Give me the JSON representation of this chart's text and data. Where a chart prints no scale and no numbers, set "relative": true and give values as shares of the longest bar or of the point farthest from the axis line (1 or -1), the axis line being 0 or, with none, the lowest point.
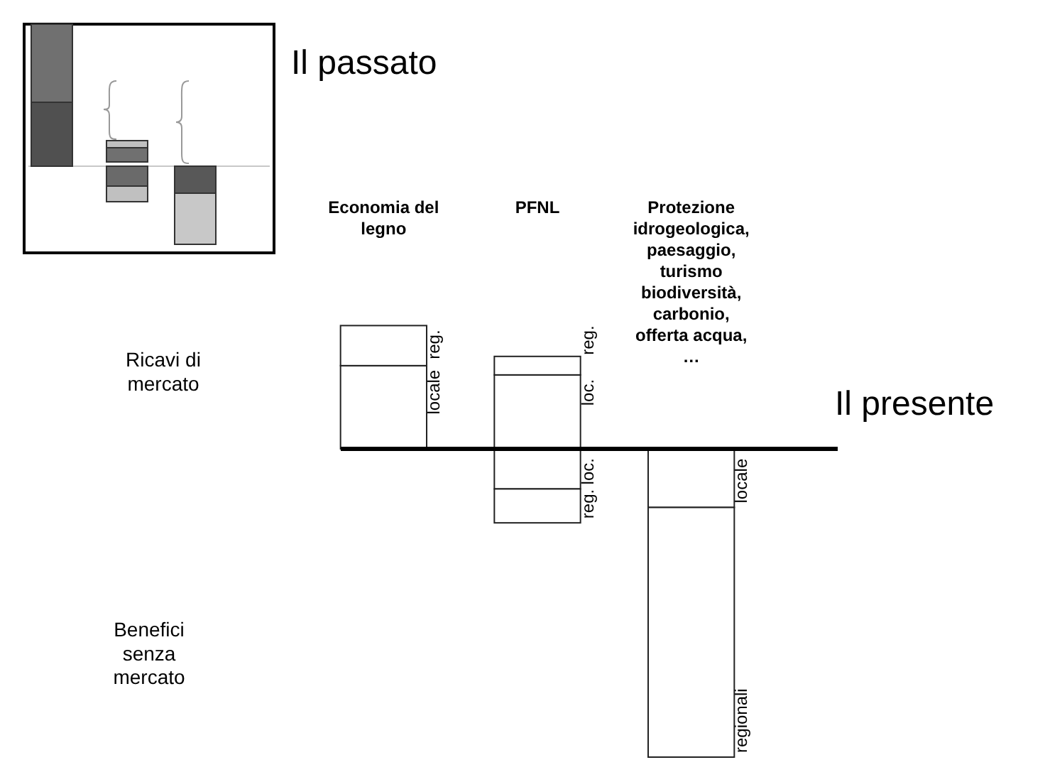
{
  "chart_data": {
    "type": "bar",
    "title": "Il presente",
    "relative": true,
    "stacked": true,
    "categories": [
      "Economia del legno",
      "PFNL",
      "Protezione idrogeologica, paesaggio, turismo biodiversità, carbonio, offerta acqua, …"
    ],
    "annotations": [
      "Il passato",
      "Ricavi di mercato",
      "Benefici senza mercato",
      {
        "text": "locale",
        "x": "Economia del legno",
        "y": 0.27
      },
      {
        "text": "reg.",
        "x": "Economia del legno",
        "y": 0.4
      },
      {
        "text": "loc.",
        "x": "PFNL",
        "y": 0.24
      },
      {
        "text": "reg.",
        "x": "PFNL",
        "y": 0.3
      },
      {
        "text": "loc.",
        "x": "PFNL",
        "y": -0.13
      },
      {
        "text": "reg.",
        "x": "PFNL",
        "y": -0.24
      },
      {
        "text": "locale",
        "x": "Protezione idrogeologica, paesaggio, turismo biodiversità, carbonio, offerta acqua, …",
        "y": -0.19
      },
      {
        "text": "regionali",
        "x": "Protezione idrogeologica, paesaggio, turismo biodiversità, carbonio, offerta acqua, …",
        "y": -1
      }
    ],
    "series": [
      {
        "color": "#ffffff",
        "values": [
          0.27,
          0.24,
          null
        ]
      },
      {
        "color": "#ffffff",
        "values": [
          0.13,
          0.06,
          null
        ]
      },
      {
        "color": "#ffffff",
        "values": [
          null,
          -0.13,
          -0.19
        ]
      },
      {
        "color": "#ffffff",
        "values": [
          null,
          -0.11,
          -0.81
        ]
      }
    ]
  }
}
